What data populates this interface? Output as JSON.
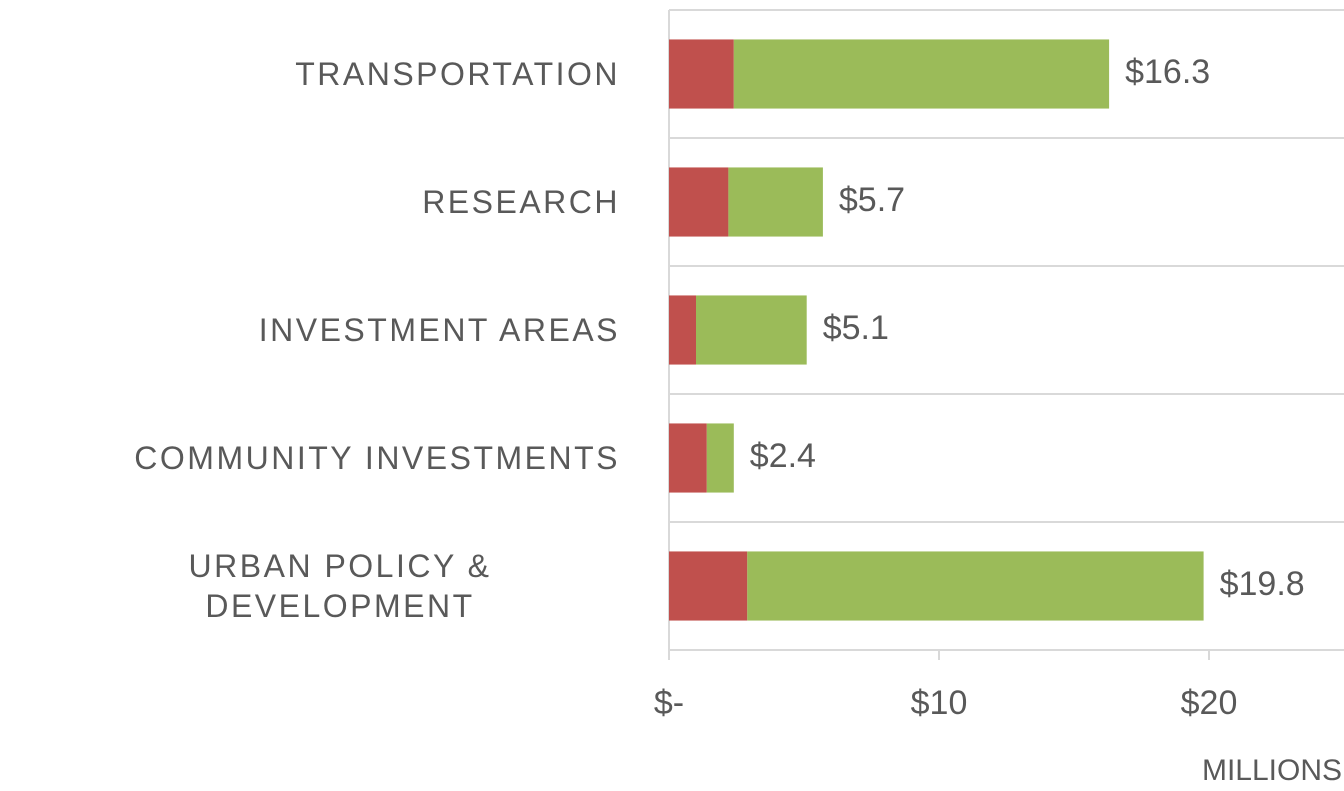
{
  "chart_data": {
    "type": "stacked-bar-horizontal",
    "categories": [
      "TRANSPORTATION",
      "RESEARCH",
      "INVESTMENT AREAS",
      "COMMUNITY INVESTMENTS",
      "URBAN POLICY & DEVELOPMENT"
    ],
    "series": [
      {
        "color": "#c0504d",
        "values": [
          2.4,
          2.2,
          1.0,
          1.4,
          2.9
        ]
      },
      {
        "color": "#9bbb59",
        "values": [
          13.9,
          3.5,
          4.1,
          1.0,
          16.9
        ]
      }
    ],
    "totals": [
      16.3,
      5.7,
      5.1,
      2.4,
      19.8
    ],
    "total_labels": [
      "$16.3",
      "$5.7",
      "$5.1",
      "$2.4",
      "$19.8"
    ],
    "xlim": [
      0,
      25
    ],
    "xticks": [
      {
        "value": 0,
        "label": "$-"
      },
      {
        "value": 10,
        "label": "$10"
      },
      {
        "value": 20,
        "label": "$20"
      }
    ],
    "x_label": "MILLIONS"
  }
}
